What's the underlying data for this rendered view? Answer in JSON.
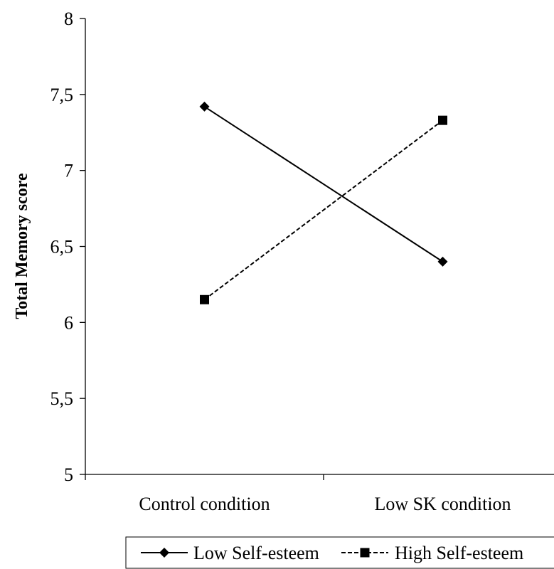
{
  "chart_data": {
    "type": "line",
    "title": "",
    "xlabel": "",
    "ylabel": "Total Memory score",
    "categories": [
      "Control condition",
      "Low SK condition"
    ],
    "ylim": [
      5,
      8
    ],
    "yticks": [
      "5",
      "5,5",
      "6",
      "6,5",
      "7",
      "7,5",
      "8"
    ],
    "ytick_values": [
      5,
      5.5,
      6,
      6.5,
      7,
      7.5,
      8
    ],
    "grid": false,
    "legend_position": "bottom",
    "series": [
      {
        "name": "Low Self-esteem",
        "values": [
          7.42,
          6.4
        ],
        "marker": "diamond",
        "line_style": "solid",
        "color": "#000000"
      },
      {
        "name": "High Self-esteem",
        "values": [
          6.15,
          7.33
        ],
        "marker": "square",
        "line_style": "dashed",
        "color": "#000000"
      }
    ]
  }
}
